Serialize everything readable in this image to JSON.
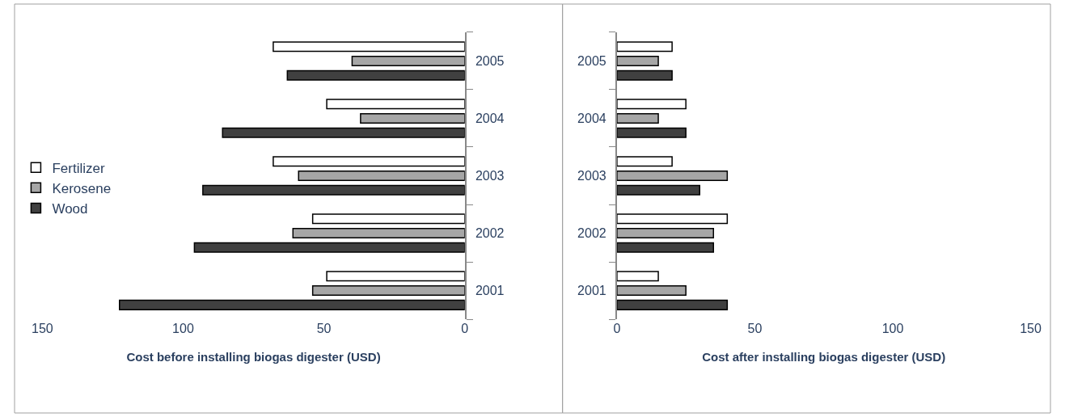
{
  "chart_data": [
    {
      "type": "bar",
      "orientation": "horizontal",
      "xlabel": "Cost before installing biogas digester (USD)",
      "categories": [
        "2005",
        "2004",
        "2003",
        "2002",
        "2001"
      ],
      "xlim": [
        150,
        0
      ],
      "xticks": [
        150,
        100,
        50,
        0
      ],
      "legend": "left",
      "series": [
        {
          "name": "Fertilizer",
          "color": "#ffffff",
          "values": [
            68,
            49,
            68,
            54,
            49
          ]
        },
        {
          "name": "Kerosene",
          "color": "#a6a6a6",
          "values": [
            40,
            37,
            59,
            61,
            54
          ]
        },
        {
          "name": "Wood",
          "color": "#404040",
          "values": [
            63,
            86,
            93,
            96,
            122.6
          ]
        }
      ]
    },
    {
      "type": "bar",
      "orientation": "horizontal",
      "xlabel": "Cost after installing biogas digester (USD)",
      "categories": [
        "2005",
        "2004",
        "2003",
        "2002",
        "2001"
      ],
      "xlim": [
        0,
        150
      ],
      "xticks": [
        0,
        50,
        100,
        150
      ],
      "legend": false,
      "series": [
        {
          "color": "#ffffff",
          "values": [
            20,
            25,
            20,
            40,
            15
          ]
        },
        {
          "color": "#a6a6a6",
          "values": [
            15,
            15,
            40,
            35,
            25
          ]
        },
        {
          "color": "#404040",
          "values": [
            20,
            25,
            30,
            35,
            40
          ]
        }
      ]
    }
  ]
}
